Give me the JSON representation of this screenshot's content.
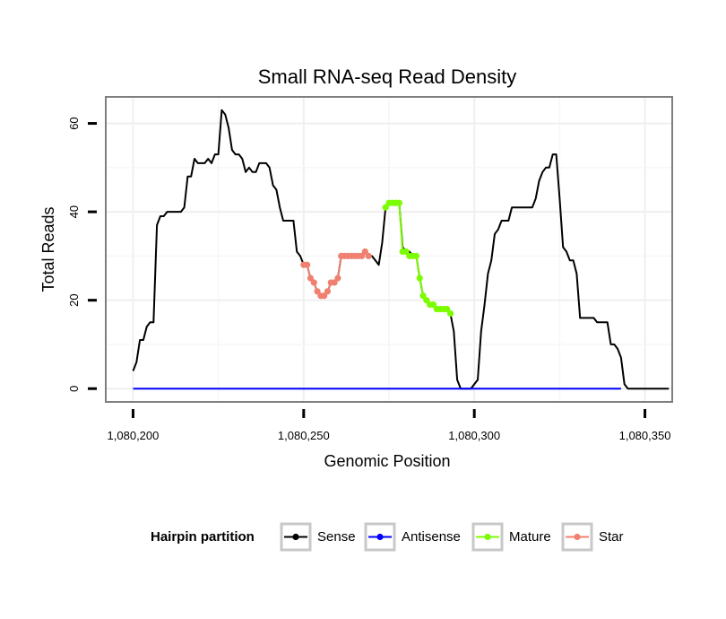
{
  "chart_data": {
    "type": "line",
    "title": "Small RNA-seq Read Density",
    "xlabel": "Genomic Position",
    "ylabel": "Total Reads",
    "xlim": [
      1080192,
      1080358
    ],
    "ylim": [
      -3,
      66
    ],
    "x_ticks": [
      1080200,
      1080250,
      1080300,
      1080350
    ],
    "x_tick_labels": [
      "1,080,200",
      "1,080,250",
      "1,080,300",
      "1,080,350"
    ],
    "y_ticks": [
      0,
      20,
      40,
      60
    ],
    "y_tick_labels": [
      "0",
      "20",
      "40",
      "60"
    ],
    "grid": true,
    "legend": {
      "title": "Hairpin partition",
      "position": "bottom",
      "entries": [
        "Sense",
        "Antisense",
        "Mature",
        "Star"
      ]
    },
    "series": [
      {
        "name": "Sense",
        "color": "#000000",
        "markers": false,
        "x": [
          1080200,
          1080201,
          1080202,
          1080203,
          1080204,
          1080205,
          1080206,
          1080207,
          1080208,
          1080209,
          1080210,
          1080211,
          1080212,
          1080213,
          1080214,
          1080215,
          1080216,
          1080217,
          1080218,
          1080219,
          1080220,
          1080221,
          1080222,
          1080223,
          1080224,
          1080225,
          1080226,
          1080227,
          1080228,
          1080229,
          1080230,
          1080231,
          1080232,
          1080233,
          1080234,
          1080235,
          1080236,
          1080237,
          1080238,
          1080239,
          1080240,
          1080241,
          1080242,
          1080243,
          1080244,
          1080245,
          1080246,
          1080247,
          1080248,
          1080249,
          1080250,
          1080251,
          1080252,
          1080253,
          1080254,
          1080255,
          1080256,
          1080257,
          1080258,
          1080259,
          1080260,
          1080261,
          1080262,
          1080263,
          1080264,
          1080265,
          1080266,
          1080267,
          1080268,
          1080269,
          1080270,
          1080271,
          1080272,
          1080273,
          1080274,
          1080275,
          1080276,
          1080277,
          1080278,
          1080279,
          1080280,
          1080281,
          1080282,
          1080283,
          1080284,
          1080285,
          1080286,
          1080287,
          1080288,
          1080289,
          1080290,
          1080291,
          1080292,
          1080293,
          1080294,
          1080295,
          1080296,
          1080297,
          1080298,
          1080299,
          1080300,
          1080301,
          1080302,
          1080303,
          1080304,
          1080305,
          1080306,
          1080307,
          1080308,
          1080309,
          1080310,
          1080311,
          1080312,
          1080313,
          1080314,
          1080315,
          1080316,
          1080317,
          1080318,
          1080319,
          1080320,
          1080321,
          1080322,
          1080323,
          1080324,
          1080325,
          1080326,
          1080327,
          1080328,
          1080329,
          1080330,
          1080331,
          1080332,
          1080333,
          1080334,
          1080335,
          1080336,
          1080337,
          1080338,
          1080339,
          1080340,
          1080341,
          1080342,
          1080343,
          1080344,
          1080345,
          1080346,
          1080347,
          1080348,
          1080349,
          1080350,
          1080351,
          1080352,
          1080353,
          1080354,
          1080355,
          1080356,
          1080357
        ],
        "y": [
          4,
          6,
          11,
          11,
          14,
          15,
          15,
          37,
          39,
          39,
          40,
          40,
          40,
          40,
          40,
          41,
          48,
          48,
          52,
          51,
          51,
          51,
          52,
          51,
          53,
          53,
          63,
          62,
          59,
          54,
          53,
          53,
          52,
          49,
          50,
          49,
          49,
          51,
          51,
          51,
          50,
          46,
          45,
          41,
          38,
          38,
          38,
          38,
          31,
          30,
          28,
          28,
          25,
          24,
          22,
          21,
          21,
          22,
          24,
          24,
          25,
          30,
          30,
          30,
          30,
          30,
          30,
          30,
          31,
          30,
          30,
          29,
          28,
          33,
          41,
          42,
          42,
          42,
          42,
          32,
          31,
          31,
          30,
          30,
          25,
          21,
          20,
          19,
          19,
          18,
          18,
          18,
          18,
          17,
          13,
          2,
          0,
          0,
          0,
          0,
          1,
          2,
          13,
          19,
          26,
          29,
          35,
          36,
          38,
          38,
          38,
          41,
          41,
          41,
          41,
          41,
          41,
          41,
          43,
          47,
          49,
          50,
          50,
          53,
          53,
          43,
          32,
          31,
          29,
          29,
          26,
          16,
          16,
          16,
          16,
          16,
          15,
          15,
          15,
          15,
          10,
          10,
          9,
          7,
          1,
          0,
          0,
          0,
          0,
          0,
          0,
          0,
          0,
          0,
          0,
          0,
          0,
          0
        ]
      },
      {
        "name": "Antisense",
        "color": "#0000ff",
        "markers": false,
        "x": [
          1080200,
          1080343
        ],
        "y": [
          0,
          0
        ]
      },
      {
        "name": "Mature",
        "color": "#7cfc00",
        "markers": true,
        "x": [
          1080274,
          1080275,
          1080276,
          1080277,
          1080278,
          1080279,
          1080280,
          1080281,
          1080282,
          1080283,
          1080284,
          1080285,
          1080286,
          1080287,
          1080288,
          1080289,
          1080290,
          1080291,
          1080292,
          1080293
        ],
        "y": [
          41,
          42,
          42,
          42,
          42,
          31,
          31,
          30,
          30,
          30,
          25,
          21,
          20,
          19,
          19,
          18,
          18,
          18,
          18,
          17
        ]
      },
      {
        "name": "Star",
        "color": "#f08070",
        "markers": true,
        "x": [
          1080250,
          1080251,
          1080252,
          1080253,
          1080254,
          1080255,
          1080256,
          1080257,
          1080258,
          1080259,
          1080260,
          1080261,
          1080262,
          1080263,
          1080264,
          1080265,
          1080266,
          1080267,
          1080268,
          1080269
        ],
        "y": [
          28,
          28,
          25,
          24,
          22,
          21,
          21,
          22,
          24,
          24,
          25,
          30,
          30,
          30,
          30,
          30,
          30,
          30,
          31,
          30
        ]
      }
    ]
  }
}
